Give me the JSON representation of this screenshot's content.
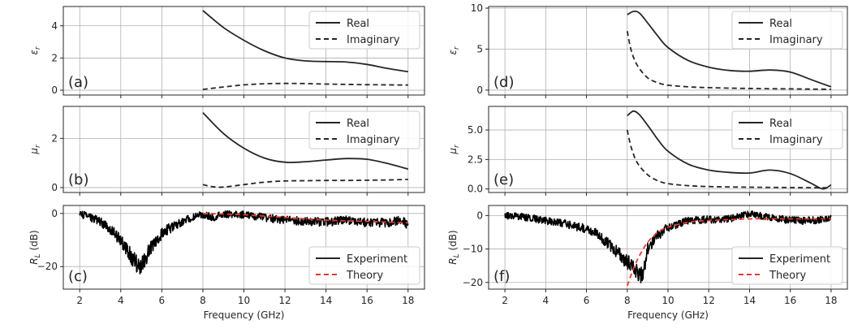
{
  "chart_data": [
    {
      "type": "line",
      "panel": "(a)",
      "ylabel": "εr",
      "ylabel_sub": "r",
      "ylim": [
        -0.3,
        5.2
      ],
      "yticks": [
        0,
        2,
        4
      ],
      "xlim": [
        1.2,
        18.8
      ],
      "grid": true,
      "legend": "upper-right",
      "series": [
        {
          "name": "Real",
          "style": "solid",
          "color": "#262626",
          "x": [
            8,
            9,
            10,
            11,
            12,
            13,
            14,
            15,
            16,
            17,
            18
          ],
          "y": [
            4.95,
            3.9,
            3.1,
            2.45,
            2.0,
            1.82,
            1.78,
            1.75,
            1.6,
            1.35,
            1.15
          ]
        },
        {
          "name": "Imaginary",
          "style": "dashed",
          "color": "#262626",
          "x": [
            8,
            9,
            10,
            11,
            12,
            13,
            14,
            15,
            16,
            17,
            18
          ],
          "y": [
            0.05,
            0.2,
            0.33,
            0.4,
            0.42,
            0.41,
            0.38,
            0.36,
            0.34,
            0.33,
            0.32
          ]
        }
      ]
    },
    {
      "type": "line",
      "panel": "(b)",
      "ylabel": "μr",
      "ylabel_sub": "r",
      "ylim": [
        -0.2,
        3.3
      ],
      "yticks": [
        0,
        2
      ],
      "xlim": [
        1.2,
        18.8
      ],
      "grid": true,
      "legend": "upper-right",
      "series": [
        {
          "name": "Real",
          "style": "solid",
          "color": "#262626",
          "x": [
            8,
            9,
            10,
            11,
            12,
            13,
            14,
            15,
            16,
            17,
            18
          ],
          "y": [
            3.05,
            2.2,
            1.6,
            1.2,
            1.03,
            1.05,
            1.12,
            1.18,
            1.15,
            0.98,
            0.75
          ]
        },
        {
          "name": "Imaginary",
          "style": "dashed",
          "color": "#262626",
          "x": [
            8,
            8.5,
            9,
            10,
            11,
            12,
            13,
            14,
            15,
            16,
            17,
            18
          ],
          "y": [
            0.12,
            0.03,
            0.02,
            0.12,
            0.22,
            0.27,
            0.28,
            0.29,
            0.29,
            0.3,
            0.31,
            0.33
          ]
        }
      ]
    },
    {
      "type": "line",
      "panel": "(c)",
      "ylabel": "RL (dB)",
      "ylabel_sub": "L",
      "ylim": [
        -28.5,
        3
      ],
      "yticks": [
        0,
        -20
      ],
      "xlim": [
        1.2,
        18.8
      ],
      "xticks": [
        2,
        4,
        6,
        8,
        10,
        12,
        14,
        16,
        18
      ],
      "xlabel": "Frequency (GHz)",
      "grid": true,
      "legend": "lower-right",
      "series": [
        {
          "name": "Experiment",
          "style": "noisy",
          "color": "#000000",
          "noise": 1.3,
          "x": [
            2,
            2.5,
            3,
            3.5,
            4,
            4.3,
            4.6,
            4.9,
            5.1,
            5.4,
            5.8,
            6.3,
            7,
            7.5,
            8,
            8.5,
            9,
            10,
            11,
            12,
            13,
            14,
            15,
            16,
            17,
            17.7,
            18
          ],
          "y": [
            0,
            -1.5,
            -3,
            -6,
            -10,
            -14,
            -17,
            -20,
            -18,
            -14,
            -9,
            -6,
            -3,
            -1.5,
            -0.5,
            -1.5,
            -0.3,
            -0.5,
            -1.5,
            -2.5,
            -3,
            -3.2,
            -2.5,
            -3.5,
            -3.5,
            -2.5,
            -4.5
          ]
        },
        {
          "name": "Theory",
          "style": "dashed",
          "color": "#e8382e",
          "x": [
            8,
            10,
            12,
            14,
            16,
            18
          ],
          "y": [
            0,
            -0.5,
            -1.5,
            -2.5,
            -3,
            -3.5
          ]
        }
      ]
    },
    {
      "type": "line",
      "panel": "(d)",
      "ylabel": "εr",
      "ylabel_sub": "r",
      "ylim": [
        -0.6,
        10.2
      ],
      "yticks": [
        0,
        5,
        10
      ],
      "xlim": [
        1.2,
        18.8
      ],
      "grid": true,
      "legend": "upper-right",
      "series": [
        {
          "name": "Real",
          "style": "solid",
          "color": "#262626",
          "x": [
            8,
            8.3,
            8.6,
            9,
            9.5,
            10,
            11,
            12,
            13,
            14,
            15,
            16,
            17,
            18
          ],
          "y": [
            9.2,
            9.6,
            9.4,
            8.2,
            6.6,
            5.2,
            3.6,
            2.8,
            2.4,
            2.3,
            2.45,
            2.2,
            1.3,
            0.4
          ]
        },
        {
          "name": "Imaginary",
          "style": "dashed",
          "color": "#262626",
          "x": [
            8,
            8.2,
            8.5,
            9,
            9.5,
            10,
            11,
            12,
            14,
            16,
            18
          ],
          "y": [
            7.2,
            4.8,
            3.0,
            1.5,
            0.9,
            0.6,
            0.4,
            0.3,
            0.2,
            0.15,
            0.1
          ]
        }
      ]
    },
    {
      "type": "line",
      "panel": "(e)",
      "ylabel": "μr",
      "ylabel_sub": "r",
      "ylim": [
        -0.3,
        7.0
      ],
      "yticks": [
        0.0,
        2.5,
        5.0
      ],
      "tick_decimals": 1,
      "xlim": [
        1.2,
        18.8
      ],
      "grid": true,
      "legend": "upper-right",
      "series": [
        {
          "name": "Real",
          "style": "solid",
          "color": "#262626",
          "x": [
            8,
            8.3,
            8.6,
            9,
            9.5,
            10,
            11,
            12,
            13,
            14,
            15,
            16,
            17,
            17.6,
            18
          ],
          "y": [
            6.2,
            6.6,
            6.3,
            5.4,
            4.2,
            3.2,
            2.1,
            1.6,
            1.4,
            1.35,
            1.6,
            1.3,
            0.5,
            0.0,
            0.35
          ]
        },
        {
          "name": "Imaginary",
          "style": "dashed",
          "color": "#262626",
          "x": [
            8,
            8.2,
            8.5,
            9,
            9.5,
            10,
            11,
            12,
            14,
            16,
            18
          ],
          "y": [
            5.0,
            3.5,
            2.2,
            1.2,
            0.7,
            0.45,
            0.28,
            0.2,
            0.15,
            0.12,
            0.1
          ]
        }
      ]
    },
    {
      "type": "line",
      "panel": "(f)",
      "ylabel": "RL (dB)",
      "ylabel_sub": "L",
      "ylim": [
        -22,
        3
      ],
      "yticks": [
        0,
        -10,
        -20
      ],
      "xlim": [
        1.2,
        18.8
      ],
      "xticks": [
        2,
        4,
        6,
        8,
        10,
        12,
        14,
        16,
        18
      ],
      "xlabel": "Frequency (GHz)",
      "grid": true,
      "legend": "lower-right",
      "series": [
        {
          "name": "Experiment",
          "style": "noisy",
          "color": "#000000",
          "noise": 1.0,
          "x": [
            2,
            3,
            4,
            5,
            6,
            6.5,
            7,
            7.5,
            8,
            8.3,
            8.6,
            8.8,
            9,
            9.5,
            10,
            11,
            12,
            13,
            14,
            15,
            16,
            17,
            18
          ],
          "y": [
            0,
            -0.5,
            -1.5,
            -2.5,
            -4,
            -5.5,
            -8,
            -11,
            -14,
            -15,
            -18,
            -17,
            -10,
            -6,
            -3.5,
            -1.5,
            -1.2,
            -1,
            0.5,
            -0.5,
            -1.5,
            -1.5,
            -1
          ]
        },
        {
          "name": "Theory",
          "style": "dashed",
          "color": "#e8382e",
          "x": [
            8,
            8.3,
            8.6,
            9,
            9.5,
            10,
            11,
            12,
            14,
            16,
            18
          ],
          "y": [
            -21,
            -16,
            -12,
            -8,
            -5,
            -3.5,
            -2,
            -1.5,
            -1,
            -1,
            -1
          ]
        }
      ]
    }
  ]
}
